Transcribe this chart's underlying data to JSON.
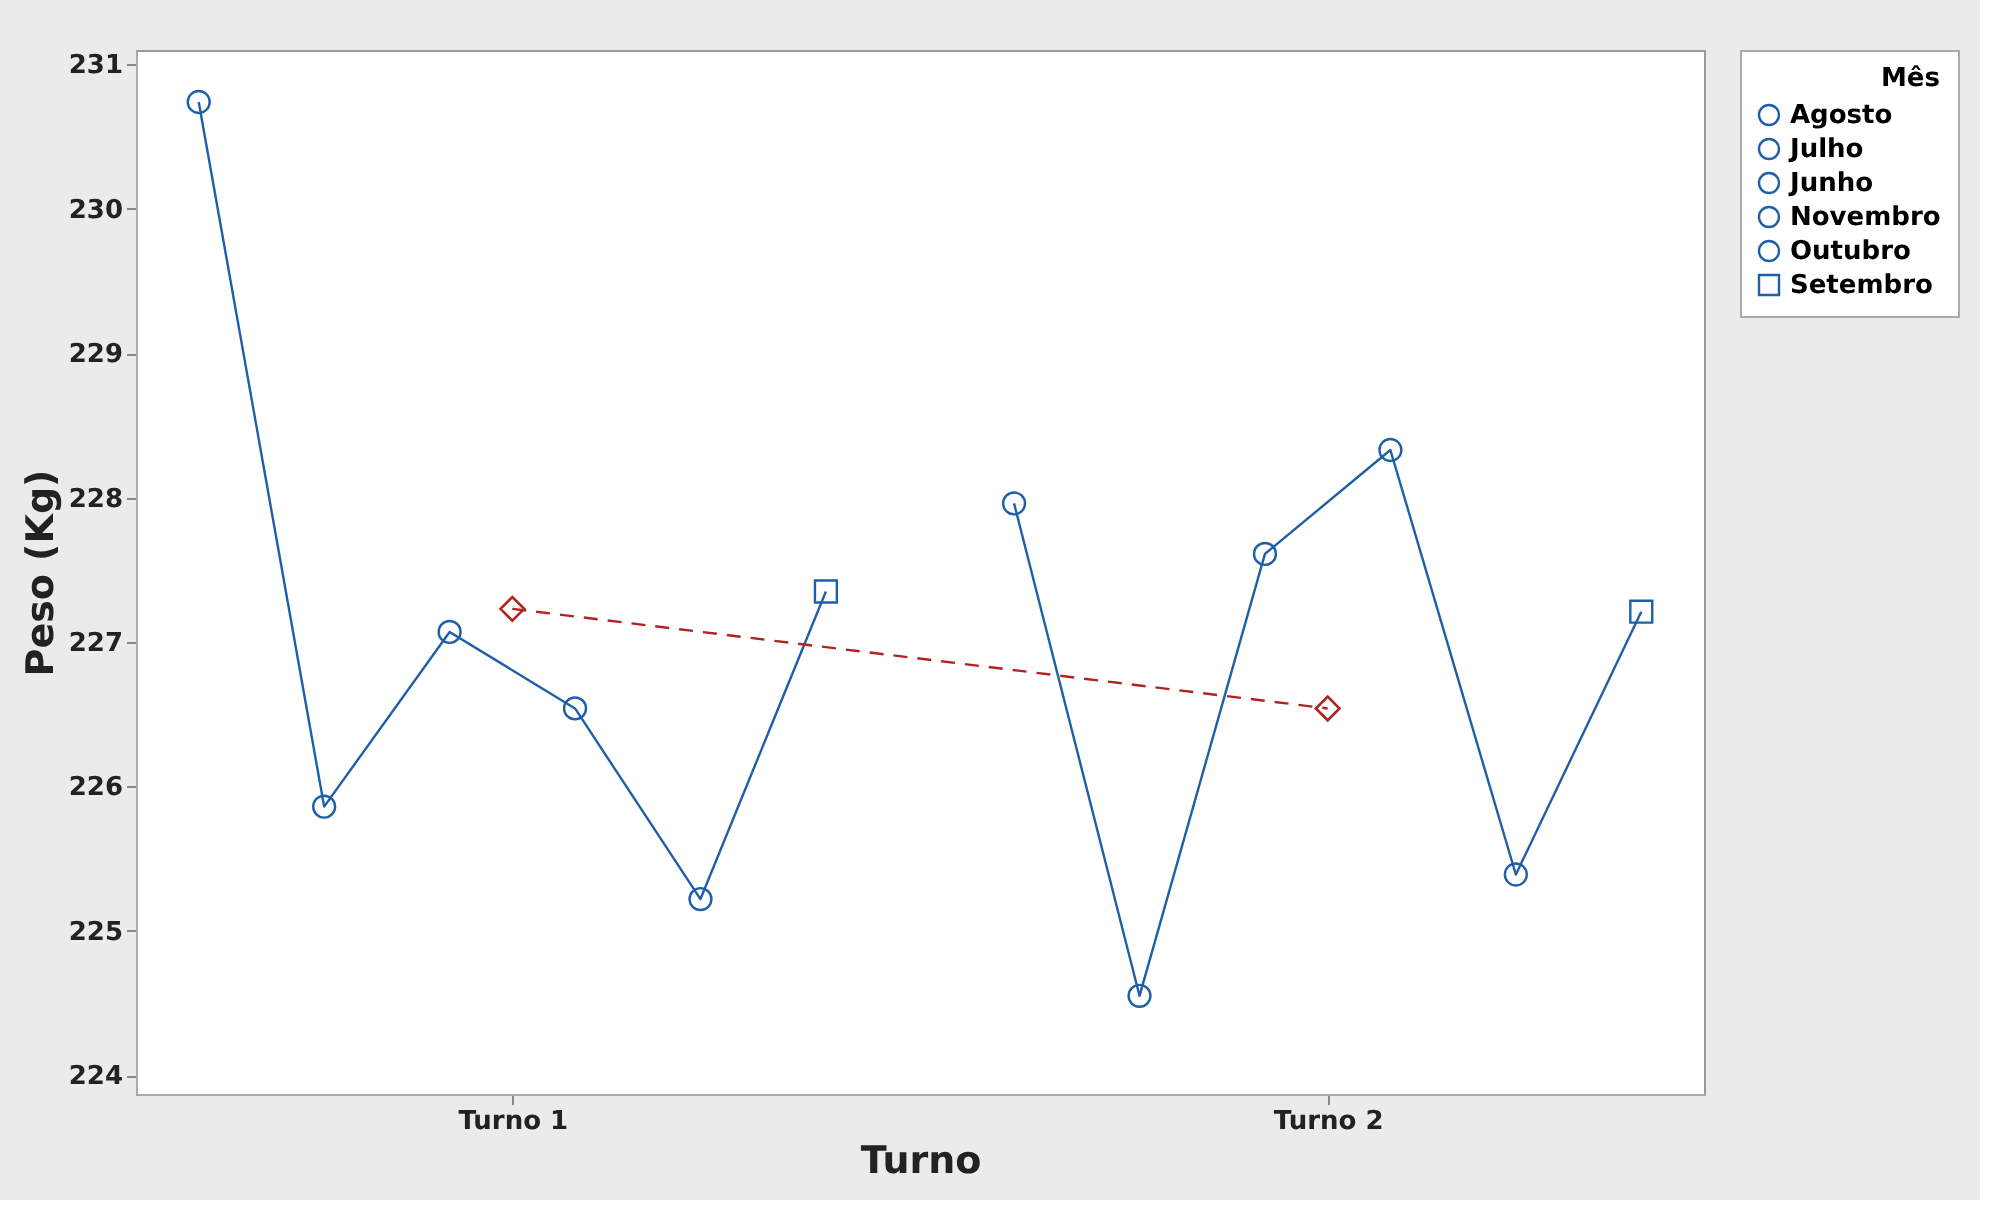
{
  "chart_data": {
    "type": "line",
    "xlabel": "Turno",
    "ylabel": "Peso (Kg)",
    "legend_title": "Mês",
    "legend": "top right",
    "grid": false,
    "categories": [
      null,
      null,
      null,
      null,
      null,
      "Turno 1",
      null,
      null,
      null,
      null,
      null,
      null,
      null,
      null,
      null,
      null,
      null,
      null,
      "Turno 2",
      null,
      null,
      null,
      null,
      null
    ],
    "ylim": [
      223.87,
      231.1
    ],
    "yticks": [
      224,
      225,
      226,
      227,
      228,
      229,
      230,
      231
    ],
    "series": [
      {
        "marker": "none",
        "line_style": "solid",
        "color": "#1f5fa8",
        "values": [
          230.74,
          null,
          225.86,
          null,
          227.07,
          null,
          226.54,
          null,
          225.22,
          null,
          227.35,
          null,
          null,
          null,
          null,
          null,
          null,
          null,
          null,
          null,
          null,
          null,
          null,
          null
        ]
      },
      {
        "marker": "none",
        "line_style": "solid",
        "color": "#1f5fa8",
        "values": [
          null,
          null,
          null,
          null,
          null,
          null,
          null,
          null,
          null,
          null,
          null,
          null,
          null,
          227.96,
          null,
          224.55,
          null,
          227.61,
          null,
          228.33,
          null,
          225.39,
          null,
          227.21
        ]
      },
      {
        "marker": "diamond",
        "line_style": "dashed",
        "color": "#b22222",
        "values": [
          null,
          null,
          null,
          null,
          null,
          227.23,
          null,
          null,
          null,
          null,
          null,
          null,
          null,
          null,
          null,
          null,
          null,
          null,
          226.54,
          null,
          null,
          null,
          null,
          null
        ]
      },
      {
        "type": "scatter",
        "name": "Agosto",
        "marker": "circle",
        "color": "#1f5fa8",
        "values": [
          230.74,
          null,
          null,
          null,
          null,
          null,
          null,
          null,
          null,
          null,
          null,
          null,
          null,
          227.96,
          null,
          null,
          null,
          null,
          null,
          null,
          null,
          null,
          null,
          null
        ]
      },
      {
        "type": "scatter",
        "name": "Julho",
        "marker": "circle",
        "color": "#1f5fa8",
        "values": [
          null,
          null,
          225.86,
          null,
          null,
          null,
          null,
          null,
          null,
          null,
          null,
          null,
          null,
          null,
          null,
          224.55,
          null,
          null,
          null,
          null,
          null,
          null,
          null,
          null
        ]
      },
      {
        "type": "scatter",
        "name": "Junho",
        "marker": "circle",
        "color": "#1f5fa8",
        "values": [
          null,
          null,
          null,
          null,
          227.07,
          null,
          null,
          null,
          null,
          null,
          null,
          null,
          null,
          null,
          null,
          null,
          null,
          227.61,
          null,
          null,
          null,
          null,
          null,
          null
        ]
      },
      {
        "type": "scatter",
        "name": "Novembro",
        "marker": "circle",
        "color": "#1f5fa8",
        "values": [
          null,
          null,
          null,
          null,
          null,
          null,
          226.54,
          null,
          null,
          null,
          null,
          null,
          null,
          null,
          null,
          null,
          null,
          null,
          null,
          228.33,
          null,
          null,
          null,
          null
        ]
      },
      {
        "type": "scatter",
        "name": "Outubro",
        "marker": "circle",
        "color": "#1f5fa8",
        "values": [
          null,
          null,
          null,
          null,
          null,
          null,
          null,
          null,
          225.22,
          null,
          null,
          null,
          null,
          null,
          null,
          null,
          null,
          null,
          null,
          null,
          null,
          225.39,
          null,
          null
        ]
      },
      {
        "type": "scatter",
        "name": "Setembro",
        "marker": "square",
        "color": "#1f5fa8",
        "values": [
          null,
          null,
          null,
          null,
          null,
          null,
          null,
          null,
          null,
          null,
          227.35,
          null,
          null,
          null,
          null,
          null,
          null,
          null,
          null,
          null,
          null,
          null,
          null,
          227.21
        ]
      }
    ]
  }
}
